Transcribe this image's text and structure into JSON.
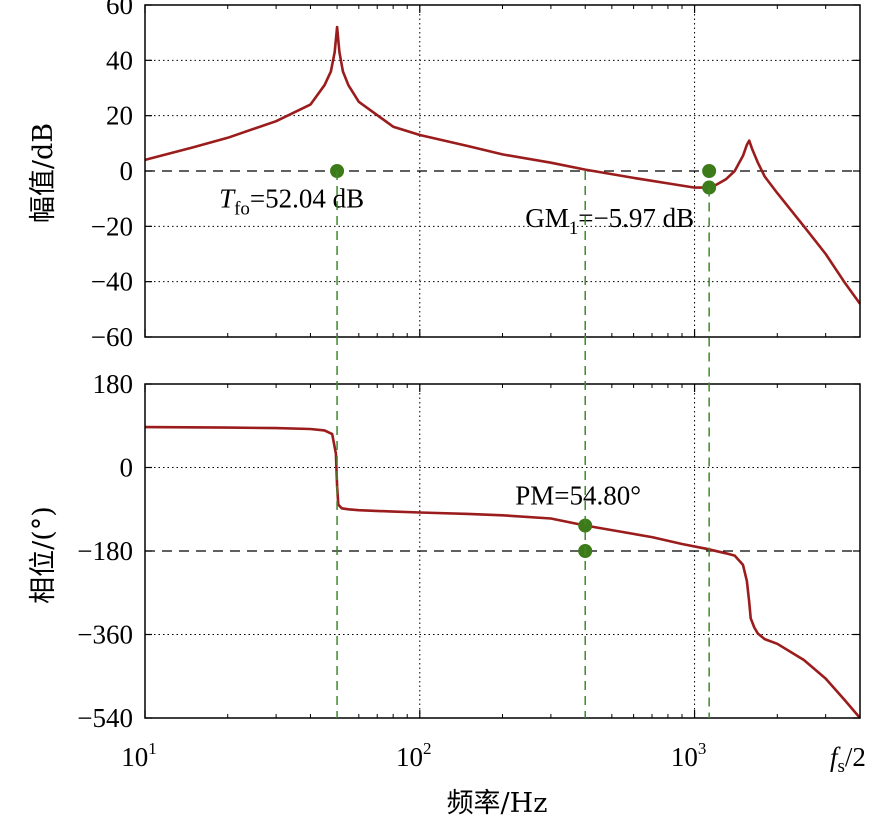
{
  "chart_data": [
    {
      "type": "line",
      "ylabel": "幅值/dB",
      "xscale": "log",
      "xlim": [
        10,
        4000
      ],
      "ylim": [
        -60,
        60
      ],
      "yticks": [
        60,
        40,
        20,
        0,
        -20,
        -40,
        -60
      ],
      "ytick_labels": [
        "60",
        "40",
        "20",
        "0",
        "−20",
        "−40",
        "−60"
      ],
      "grid": true,
      "reference_line": 0,
      "series": [
        {
          "color": "#9b1c1c",
          "x": [
            10,
            15,
            20,
            30,
            40,
            45,
            47.5,
            49,
            50,
            51,
            52.5,
            55,
            60,
            80,
            100,
            150,
            200,
            300,
            400,
            600,
            800,
            1000,
            1100,
            1200,
            1300,
            1400,
            1500,
            1550,
            1580,
            1620,
            1700,
            1800,
            2000,
            2500,
            3000,
            3500,
            4000
          ],
          "y": [
            4,
            8.6,
            12,
            18,
            24,
            31,
            36,
            43,
            52.04,
            43,
            36,
            31,
            25,
            16,
            13,
            9,
            6,
            3,
            0.5,
            -2.5,
            -4.5,
            -6,
            -6,
            -5,
            -3,
            0,
            5.5,
            9.5,
            11,
            8,
            3,
            -2,
            -8,
            -20,
            -30,
            -40,
            -48
          ]
        }
      ],
      "markers": [
        {
          "x": 50,
          "y": 0,
          "color": "#3d7a1a"
        },
        {
          "x": 1130,
          "y": 0,
          "color": "#3d7a1a"
        },
        {
          "x": 1130,
          "y": -5.97,
          "color": "#3d7a1a"
        }
      ],
      "annotations": [
        {
          "text_main": "T",
          "text_sub": "fo",
          "text_rest": "=52.04 dB",
          "x": 50,
          "y": -10
        },
        {
          "text_main": "GM",
          "text_sub": "1",
          "text_rest": "=−5.97 dB",
          "x": 400,
          "y": -17
        }
      ]
    },
    {
      "type": "line",
      "ylabel": "相位/(°)",
      "xlabel": "频率/Hz",
      "xscale": "log",
      "xlim": [
        10,
        4000
      ],
      "ylim": [
        -540,
        180
      ],
      "yticks": [
        180,
        0,
        -180,
        -360,
        -540
      ],
      "ytick_labels": [
        "180",
        "0",
        "−180",
        "−360",
        "−540"
      ],
      "grid": true,
      "reference_line": -180,
      "series": [
        {
          "color": "#9b1c1c",
          "x": [
            10,
            20,
            30,
            40,
            45,
            48,
            49.5,
            50,
            50.5,
            52,
            55,
            60,
            80,
            100,
            150,
            200,
            300,
            400,
            500,
            700,
            900,
            1100,
            1300,
            1400,
            1500,
            1550,
            1580,
            1600,
            1650,
            1700,
            1800,
            2000,
            2500,
            3000,
            3500,
            4000
          ],
          "y": [
            87,
            86,
            85,
            83,
            80,
            72,
            30,
            -40,
            -80,
            -88,
            -90,
            -92,
            -95,
            -97,
            -100,
            -103,
            -110,
            -125,
            -135,
            -150,
            -165,
            -175,
            -185,
            -190,
            -210,
            -245,
            -290,
            -325,
            -345,
            -358,
            -370,
            -380,
            -415,
            -455,
            -500,
            -540
          ]
        }
      ],
      "markers": [
        {
          "x": 400,
          "y": -125.2,
          "color": "#3d7a1a"
        },
        {
          "x": 400,
          "y": -180,
          "color": "#3d7a1a"
        }
      ],
      "annotations": [
        {
          "text_main": "PM",
          "text_sub": "",
          "text_rest": "=54.80°",
          "x": 400,
          "y": -60
        }
      ],
      "xtick_labels": [
        {
          "x": 10,
          "base": "10",
          "exp": "1"
        },
        {
          "x": 100,
          "base": "10",
          "exp": "2"
        },
        {
          "x": 1000,
          "base": "10",
          "exp": "3"
        }
      ],
      "x_end_label": {
        "main": "f",
        "sub": "s",
        "rest": "/2"
      }
    }
  ],
  "guides": [
    {
      "x": 50
    },
    {
      "x": 400
    },
    {
      "x": 1130
    }
  ]
}
